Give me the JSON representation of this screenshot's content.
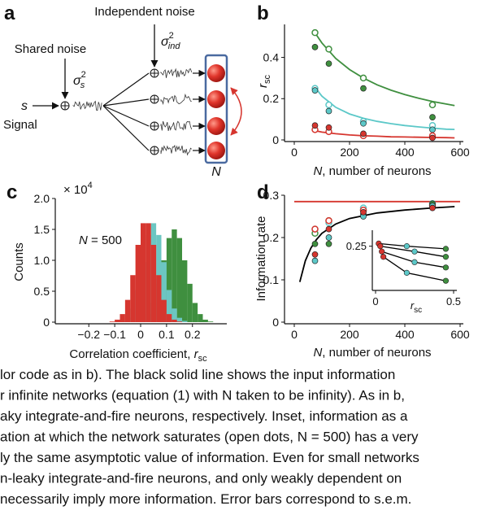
{
  "panel_a": {
    "label": "a",
    "independent_noise": "Independent noise",
    "sigma_ind": {
      "symbol": "σ",
      "sup": "2",
      "sub": "ind"
    },
    "shared_noise": "Shared noise",
    "sigma_s": {
      "symbol": "σ",
      "sup": "2",
      "sub": "s"
    },
    "signal_symbol": "s",
    "signal": "Signal",
    "population": "N"
  },
  "chart_data": [
    {
      "type": "line",
      "panel_label": "b",
      "ylabel": {
        "main": "r",
        "sub": "sc"
      },
      "xlabel": {
        "italic": "N",
        "rest": ", number of neurons"
      },
      "xlim": [
        0,
        600
      ],
      "xticks": [
        0,
        200,
        400,
        600
      ],
      "ylim": [
        0,
        0.56
      ],
      "yticks": [
        0,
        0.2,
        0.4
      ],
      "series": [
        {
          "color": "#3f8f3f",
          "marker": "none",
          "x": [
            75,
            100,
            150,
            200,
            250,
            300,
            350,
            400,
            450,
            500,
            550,
            580
          ],
          "values": [
            0.519,
            0.47,
            0.395,
            0.341,
            0.3,
            0.267,
            0.241,
            0.22,
            0.202,
            0.186,
            0.174,
            0.167
          ]
        },
        {
          "color": "#5cc8c8",
          "marker": "none",
          "x": [
            75,
            100,
            150,
            200,
            250,
            300,
            350,
            400,
            450,
            500,
            550,
            580
          ],
          "values": [
            0.255,
            0.212,
            0.158,
            0.126,
            0.105,
            0.09,
            0.079,
            0.07,
            0.063,
            0.057,
            0.052,
            0.051
          ]
        },
        {
          "color": "#d6362f",
          "marker": "none",
          "x": [
            75,
            100,
            150,
            200,
            250,
            300,
            350,
            400,
            450,
            500,
            550,
            580
          ],
          "values": [
            0.045,
            0.038,
            0.03,
            0.024,
            0.02,
            0.018,
            0.015,
            0.014,
            0.013,
            0.012,
            0.011,
            0.01
          ]
        },
        {
          "color": "#3f8f3f",
          "marker": "open",
          "x": [
            75,
            125,
            250,
            500
          ],
          "values": [
            0.52,
            0.44,
            0.3,
            0.17
          ]
        },
        {
          "color": "#3f8f3f",
          "marker": "filled",
          "x": [
            75,
            125,
            250,
            500
          ],
          "values": [
            0.45,
            0.37,
            0.25,
            0.11
          ]
        },
        {
          "color": "#5cc8c8",
          "marker": "open",
          "x": [
            75,
            125,
            250,
            500
          ],
          "values": [
            0.25,
            0.17,
            0.09,
            0.07
          ]
        },
        {
          "color": "#5cc8c8",
          "marker": "filled",
          "x": [
            75,
            125,
            250,
            500
          ],
          "values": [
            0.24,
            0.14,
            0.08,
            0.05
          ]
        },
        {
          "color": "#d6362f",
          "marker": "open",
          "x": [
            75,
            125,
            250,
            500
          ],
          "values": [
            0.05,
            0.04,
            0.02,
            0.02
          ]
        },
        {
          "color": "#d6362f",
          "marker": "filled",
          "x": [
            75,
            125,
            250,
            500
          ],
          "values": [
            0.07,
            0.06,
            0.03,
            0.01
          ]
        }
      ]
    },
    {
      "type": "histogram",
      "panel_label": "c",
      "ylabel": "Counts",
      "multiplier": {
        "base": "× 10",
        "sup": "4"
      },
      "xlabel": {
        "main": "Correlation coefficient, ",
        "italic": "r",
        "sub": "sc"
      },
      "annotation": {
        "italic": "N",
        "rest": " = 500"
      },
      "xlim": [
        -0.32,
        0.32
      ],
      "xticks": [
        {
          "value": -0.2,
          "label": "−0.2"
        },
        {
          "value": -0.1,
          "label": "−0.1"
        },
        0,
        0.1,
        0.2
      ],
      "ylim": [
        0,
        2
      ],
      "yticks": [
        0,
        0.5,
        {
          "value": 1,
          "label": "1.0"
        },
        1.5,
        {
          "value": 2,
          "label": "2.0"
        }
      ],
      "bins": [
        -0.14,
        -0.12,
        -0.1,
        -0.08,
        -0.06,
        -0.04,
        -0.02,
        0,
        0.02,
        0.04,
        0.06,
        0.08,
        0.1,
        0.12,
        0.14,
        0.16,
        0.18,
        0.2,
        0.22,
        0.24,
        0.26,
        0.28,
        0.3
      ],
      "series": [
        {
          "color": "#3f8f3f",
          "values": [
            0,
            0,
            0,
            0,
            0,
            0,
            0.01,
            0.04,
            0.13,
            0.31,
            0.62,
            1.0,
            1.36,
            1.5,
            1.36,
            1.0,
            0.62,
            0.31,
            0.13,
            0.04,
            0.01,
            0
          ]
        },
        {
          "color": "#6cc6c2",
          "values": [
            0,
            0,
            0,
            0.02,
            0.07,
            0.22,
            0.52,
            0.97,
            1.41,
            1.6,
            1.41,
            0.97,
            0.52,
            0.22,
            0.07,
            0.02,
            0,
            0,
            0,
            0,
            0,
            0
          ]
        },
        {
          "color": "#d6362f",
          "values": [
            0,
            0.01,
            0.04,
            0.13,
            0.36,
            0.76,
            1.25,
            1.6,
            1.6,
            1.25,
            0.76,
            0.36,
            0.13,
            0.04,
            0.01,
            0,
            0,
            0,
            0,
            0,
            0,
            0
          ]
        }
      ]
    },
    {
      "type": "line",
      "panel_label": "d",
      "ylabel": "Information rate",
      "xlabel": {
        "italic": "N",
        "rest": ", number of neurons"
      },
      "xlim": [
        0,
        600
      ],
      "xticks": [
        0,
        200,
        400,
        600
      ],
      "ylim": [
        0,
        0.3
      ],
      "yticks": [
        0,
        0.1,
        0.2,
        0.3
      ],
      "series": [
        {
          "color": "#d6362f",
          "marker": "none",
          "x": [
            0,
            600
          ],
          "values": [
            0.285,
            0.285
          ]
        },
        {
          "color": "#000000",
          "marker": "none",
          "x": [
            20,
            30,
            40,
            60,
            80,
            100,
            150,
            200,
            300,
            400,
            500,
            580
          ],
          "values": [
            0.095,
            0.12,
            0.145,
            0.175,
            0.195,
            0.21,
            0.232,
            0.245,
            0.258,
            0.265,
            0.27,
            0.273
          ]
        },
        {
          "color": "#3f8f3f",
          "marker": "open",
          "x": [
            75,
            125,
            250,
            500
          ],
          "values": [
            0.21,
            0.24,
            0.265,
            0.28
          ]
        },
        {
          "color": "#5cc8c8",
          "marker": "open",
          "x": [
            75,
            125,
            250,
            500
          ],
          "values": [
            0.22,
            0.235,
            0.27,
            0.28
          ]
        },
        {
          "color": "#d6362f",
          "marker": "open",
          "x": [
            75,
            125,
            250,
            500
          ],
          "values": [
            0.22,
            0.24,
            0.265,
            0.275
          ]
        },
        {
          "color": "#3f8f3f",
          "marker": "filled",
          "x": [
            75,
            125,
            250,
            500
          ],
          "values": [
            0.185,
            0.185,
            0.255,
            0.28
          ]
        },
        {
          "color": "#5cc8c8",
          "marker": "filled",
          "x": [
            75,
            125,
            250,
            500
          ],
          "values": [
            0.145,
            0.2,
            0.25,
            0.275
          ]
        },
        {
          "color": "#d6362f",
          "marker": "filled",
          "x": [
            75,
            125,
            250,
            500
          ],
          "values": [
            0.16,
            0.22,
            0.26,
            0.27
          ]
        }
      ]
    },
    {
      "type": "inset-line",
      "xlabel": {
        "italic": "r",
        "sub": "sc"
      },
      "xlim": [
        0,
        0.5
      ],
      "xticks": [
        0,
        0.5
      ],
      "ylim": [
        0.17,
        0.28
      ],
      "yticks": [
        0.25
      ],
      "marker_colors": [
        "#d6362f",
        "#5cc8c8",
        "#3f8f3f"
      ],
      "series": [
        {
          "color": "#000000",
          "x": [
            0.02,
            0.2,
            0.45
          ],
          "values": [
            0.255,
            0.25,
            0.245
          ]
        },
        {
          "color": "#000000",
          "x": [
            0.03,
            0.25,
            0.45
          ],
          "values": [
            0.25,
            0.24,
            0.23
          ]
        },
        {
          "color": "#000000",
          "x": [
            0.04,
            0.25,
            0.45
          ],
          "values": [
            0.24,
            0.22,
            0.21
          ]
        },
        {
          "color": "#000000",
          "x": [
            0.05,
            0.2,
            0.45
          ],
          "values": [
            0.23,
            0.2,
            0.185
          ]
        }
      ]
    }
  ],
  "caption": [
    "lor code as in b). The black solid line shows the input information",
    "r infinite networks (equation (1) with N taken to be infinity). As in b,",
    "aky integrate-and-fire neurons, respectively. Inset, information as a",
    "ation at which the network saturates (open dots, N = 500) has a very",
    "ly the same asymptotic value of information. Even for small networks",
    "n-leaky integrate-and-fire neurons, and only weakly dependent on",
    " necessarily imply more information. Error bars correspond to s.e.m."
  ]
}
